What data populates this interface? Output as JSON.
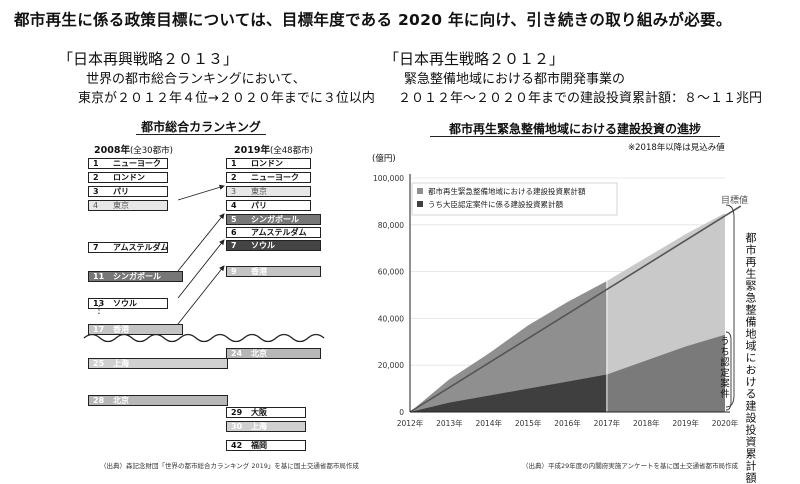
{
  "title": "都市再生に係る政策目標については、目標年度である 2020 年に向け、引き続きの取り組みが必要。",
  "left_panel": {
    "strategy_title": "「日本再興戦略２０１３」",
    "strategy_line1": "世界の都市総合ランキングにおいて、",
    "strategy_line2": "東京が２０１２年４位→２０２０年までに３位以内",
    "section_title": "都市総合カランキング",
    "col2008": {
      "year": "2008年",
      "note": "(全30都市)"
    },
    "col2019": {
      "year": "2019年",
      "note": "(全48都市)"
    },
    "ranks_2008": [
      {
        "rank": "1",
        "city": "ニューヨーク",
        "tone": "white"
      },
      {
        "rank": "2",
        "city": "ロンドン",
        "tone": "white"
      },
      {
        "rank": "3",
        "city": "パリ",
        "tone": "white"
      },
      {
        "rank": "4",
        "city": "東京",
        "tone": "gray"
      },
      {
        "rank": "7",
        "city": "アムステルダム",
        "tone": "white"
      },
      {
        "rank": "11",
        "city": "シンガポール",
        "tone": "mid"
      },
      {
        "rank": "13",
        "city": "ソウル",
        "tone": "white"
      },
      {
        "rank": "17",
        "city": "香港",
        "tone": "light"
      },
      {
        "rank": "25",
        "city": "上海",
        "tone": "paleblock"
      },
      {
        "rank": "28",
        "city": "北京",
        "tone": "lighter"
      }
    ],
    "ranks_2019": [
      {
        "rank": "1",
        "city": "ロンドン",
        "tone": "white"
      },
      {
        "rank": "2",
        "city": "ニューヨーク",
        "tone": "white"
      },
      {
        "rank": "3",
        "city": "東京",
        "tone": "gray"
      },
      {
        "rank": "4",
        "city": "パリ",
        "tone": "white"
      },
      {
        "rank": "5",
        "city": "シンガポール",
        "tone": "mid"
      },
      {
        "rank": "6",
        "city": "アムステルダム",
        "tone": "white"
      },
      {
        "rank": "7",
        "city": "ソウル",
        "tone": "dark"
      },
      {
        "rank": "9",
        "city": "香港",
        "tone": "light"
      },
      {
        "rank": "24",
        "city": "北京",
        "tone": "lighter"
      },
      {
        "rank": "29",
        "city": "大阪",
        "tone": "white"
      },
      {
        "rank": "30",
        "city": "上海",
        "tone": "paleblock"
      },
      {
        "rank": "42",
        "city": "福岡",
        "tone": "white"
      }
    ],
    "ellipsis": "⋮",
    "source": "（出典）森記念財団「世界の都市総合カランキング 2019」を基に国土交通省都市局作成"
  },
  "right_panel": {
    "strategy_title": "「日本再生戦略２０１２」",
    "strategy_line1": "緊急整備地域における都市開発事業の",
    "strategy_line2": "２０１２年～２０２０年までの建設投資累計額：８～１１兆円",
    "source": "（出典）平成29年度の内閣府実施アンケートを基に国土交通省都市局作成",
    "vertical_label": "都市再生緊急整備地域における建設投資累計額",
    "vertical_sub_label": "うち認定案件",
    "target_label": "目標値"
  },
  "colors": {
    "total_area": "#8f8f8f",
    "approved_area": "#3f3f3f",
    "forecast_total": "#c9c9c9",
    "forecast_approved": "#7a7a7a",
    "target_line": "#555555"
  },
  "chart_data": {
    "type": "area",
    "title": "都市再生緊急整備地域における建設投資の進捗",
    "note": "※2018年以降は見込み値",
    "ylabel": "(億円)",
    "xlabel": "",
    "x": [
      "2012年",
      "2013年",
      "2014年",
      "2015年",
      "2016年",
      "2017年",
      "2018年",
      "2019年",
      "2020年"
    ],
    "ylim": [
      0,
      100000
    ],
    "yticks": [
      0,
      20000,
      40000,
      60000,
      80000,
      100000
    ],
    "ytick_labels": [
      "0",
      "20,000",
      "40,000",
      "60,000",
      "80,000",
      "100,000"
    ],
    "forecast_from": "2018年",
    "legend": "top-left",
    "series": [
      {
        "name": "都市再生緊急整備地域における建設投資累計額",
        "values": [
          0,
          14000,
          25000,
          37000,
          47000,
          56000,
          66000,
          76000,
          85000
        ]
      },
      {
        "name": "うち大臣認定案件に係る建設投資累計額",
        "values": [
          0,
          4000,
          7000,
          10000,
          13000,
          16000,
          22000,
          28000,
          33000
        ]
      }
    ],
    "target_line": {
      "label": "目標値",
      "from": [
        0,
        0
      ],
      "to": [
        8.4,
        88000
      ]
    }
  }
}
